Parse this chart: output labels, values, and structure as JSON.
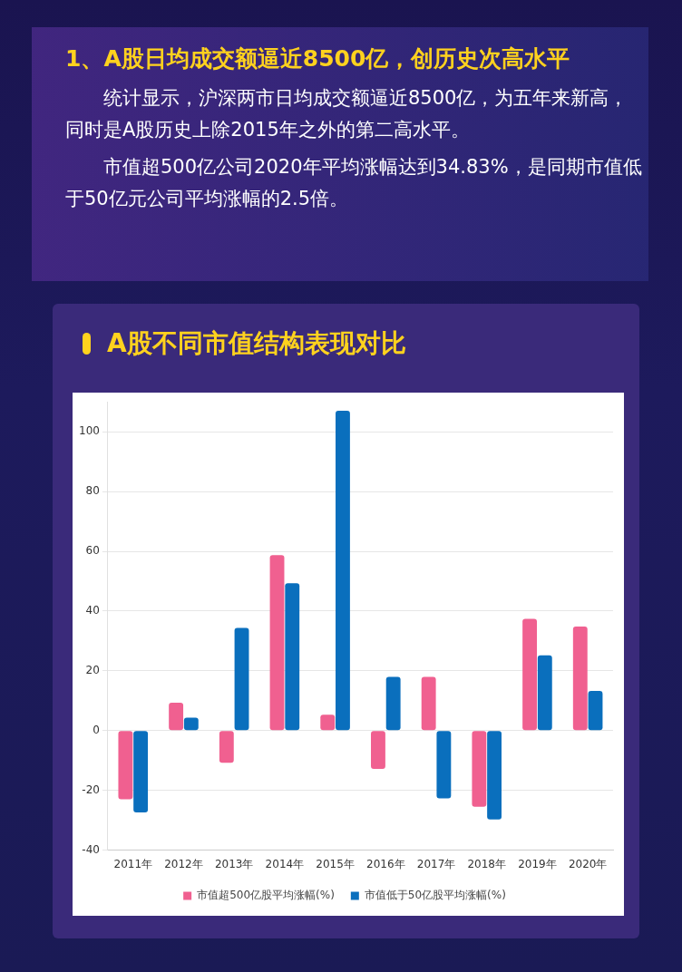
{
  "chart_data": {
    "type": "bar",
    "title": "A股不同市值结构表现对比",
    "annotations": [
      "1、A股日均成交额逼近8500亿，创历史次高水平",
      "统计显示，沪深两市日均成交额逼近8500亿，为五年来新高，同时是A股历史上除2015年之外的第二高水平。",
      "市值超500亿公司2020年平均涨幅达到34.83%，是同期市值低于50亿元公司平均涨幅的2.5倍。"
    ],
    "categories": [
      "2011年",
      "2012年",
      "2013年",
      "2014年",
      "2015年",
      "2016年",
      "2017年",
      "2018年",
      "2019年",
      "2020年"
    ],
    "series": [
      {
        "name": "市值超500亿股平均涨幅(%)",
        "color": "#f06090",
        "values": [
          -23,
          9.3,
          -10.8,
          58.7,
          5.3,
          -12.8,
          18,
          -25.5,
          37.4,
          34.8
        ]
      },
      {
        "name": "市值低于50亿股平均涨幅(%)",
        "color": "#0a6fbd",
        "values": [
          -27.4,
          4.3,
          34.4,
          49.3,
          107,
          18,
          -22.7,
          -29.7,
          25.2,
          13.3
        ]
      }
    ],
    "ylim": [
      -40,
      110
    ],
    "yticks": [
      -40,
      -20,
      0,
      20,
      40,
      60,
      80,
      100
    ],
    "grid": "y",
    "legend": "bottom"
  }
}
